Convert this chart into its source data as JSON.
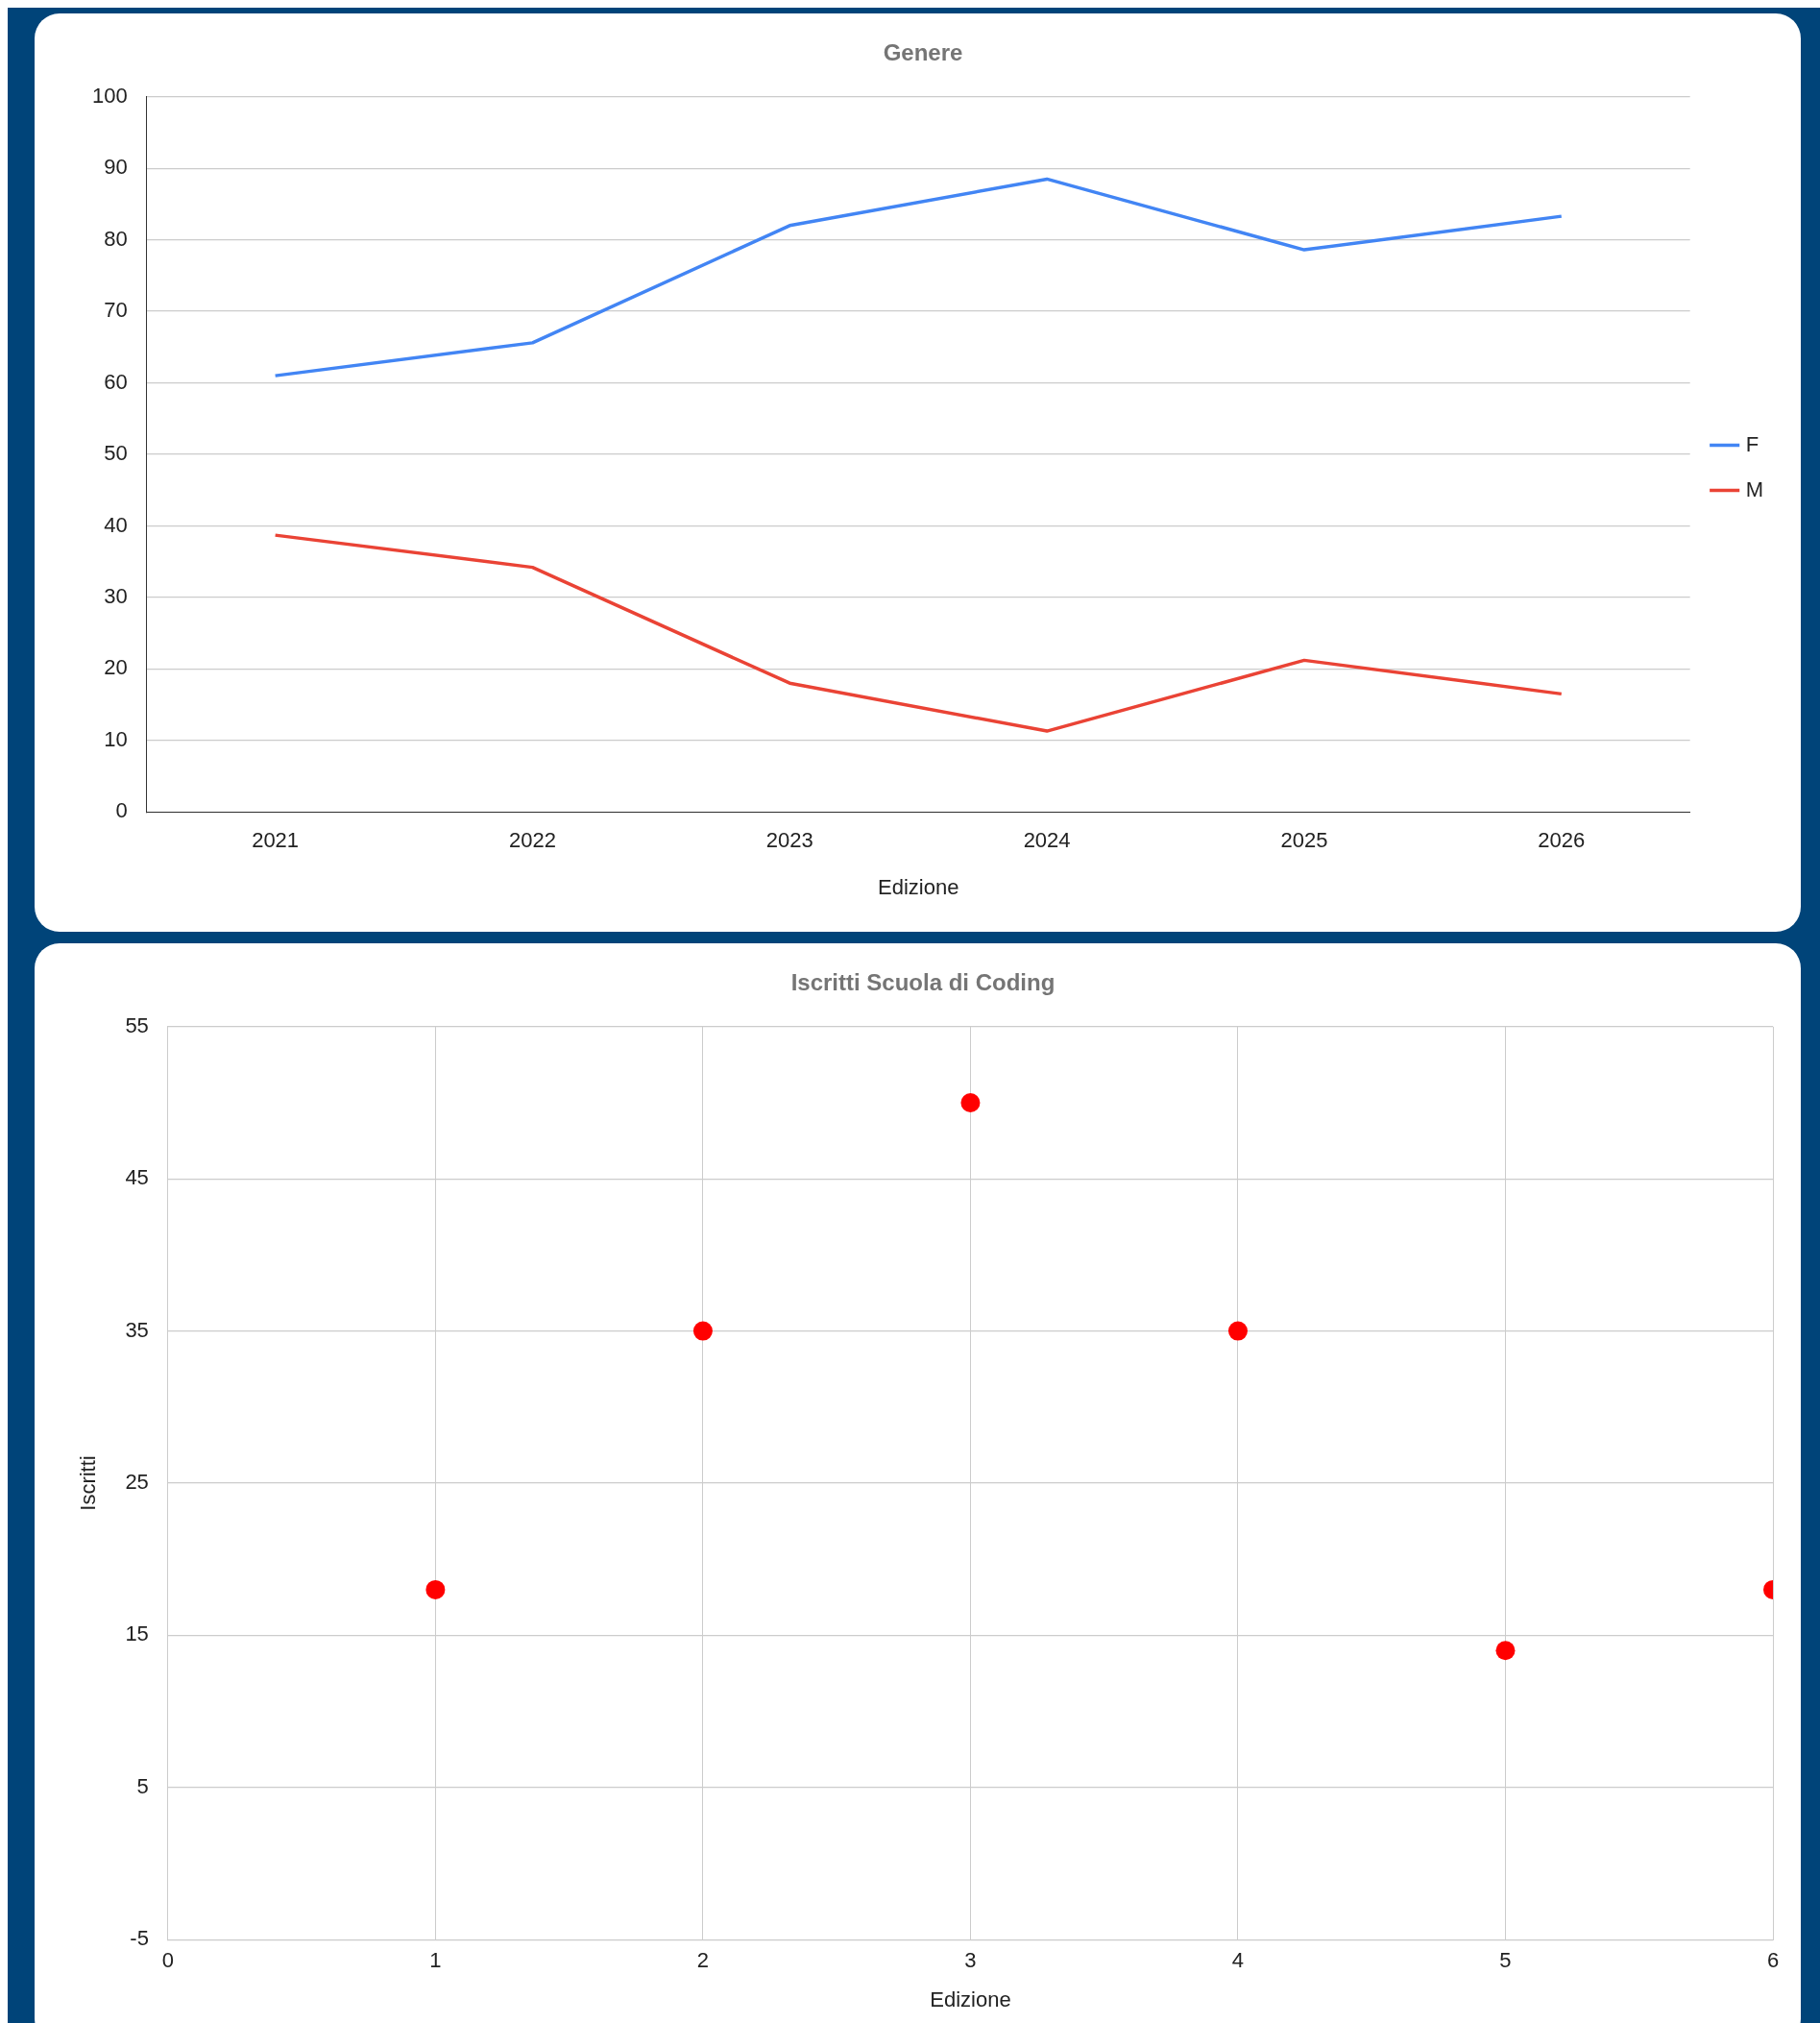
{
  "chart_data": [
    {
      "type": "line",
      "title": "Genere",
      "xlabel": "Edizione",
      "categories": [
        "2021",
        "2022",
        "2023",
        "2024",
        "2025",
        "2026"
      ],
      "series": [
        {
          "name": "F",
          "color": "#4285f4",
          "values": [
            61.0,
            65.6,
            82.0,
            88.5,
            78.6,
            83.3
          ]
        },
        {
          "name": "M",
          "color": "#ea4335",
          "values": [
            38.7,
            34.2,
            18.0,
            11.3,
            21.2,
            16.5
          ]
        }
      ],
      "ylim": [
        0,
        100
      ],
      "yticks": [
        0,
        10,
        20,
        30,
        40,
        50,
        60,
        70,
        80,
        90,
        100
      ],
      "grid": "y",
      "legend": "right",
      "marker": "none"
    },
    {
      "type": "scatter",
      "title": "Iscritti Scuola di Coding",
      "xlabel": "Edizione",
      "ylabel": "Iscritti",
      "x": [
        1,
        2,
        3,
        4,
        5,
        6
      ],
      "series": [
        {
          "color": "#ff0000",
          "values": [
            18,
            35,
            50,
            35,
            14,
            18
          ]
        }
      ],
      "xlim": [
        0,
        6
      ],
      "xticks": [
        0,
        1,
        2,
        3,
        4,
        5,
        6
      ],
      "ylim": [
        -5,
        55
      ],
      "yticks": [
        -5,
        5,
        15,
        25,
        35,
        45,
        55
      ],
      "grid": true,
      "legend": false,
      "marker": "circle"
    }
  ]
}
